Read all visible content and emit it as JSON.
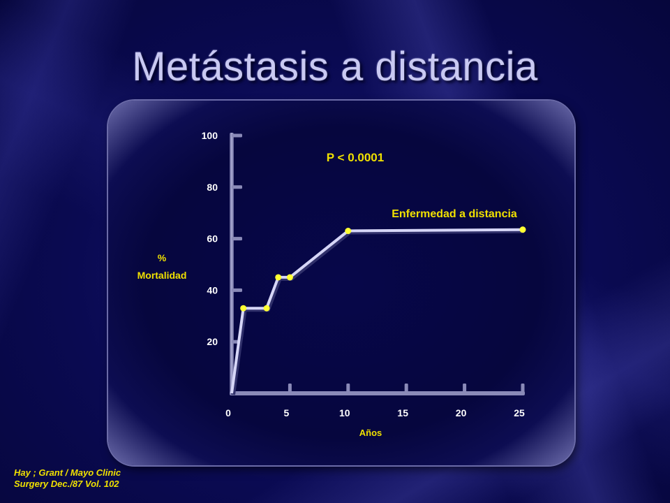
{
  "slide": {
    "title": "Metástasis a distancia",
    "source_line1": "Hay ; Grant / Mayo Clinic",
    "source_line2": "Surgery  Dec./87   Vol. 102"
  },
  "colors": {
    "title": "#c9c9f2",
    "line": "#d6d6f7",
    "points": "#ffff33",
    "text_yellow": "#f0e000",
    "axis": "#8a8ab8"
  },
  "chart_data": {
    "type": "line",
    "ylabel_line1": "%",
    "ylabel_line2": "Mortalidad",
    "xlabel": "Años",
    "annotation": "P < 0.0001",
    "xlim": [
      0,
      25
    ],
    "ylim": [
      0,
      100
    ],
    "xticks": [
      0,
      5,
      10,
      15,
      20,
      25
    ],
    "yticks": [
      20,
      40,
      60,
      80,
      100
    ],
    "grid": false,
    "series": [
      {
        "name": "Enfermedad a distancia",
        "x": [
          0,
          1,
          3,
          4,
          5,
          10,
          25
        ],
        "y": [
          0,
          33,
          33,
          45,
          45,
          63,
          63.5
        ],
        "markers": [
          false,
          true,
          true,
          true,
          true,
          true,
          true
        ]
      }
    ]
  }
}
